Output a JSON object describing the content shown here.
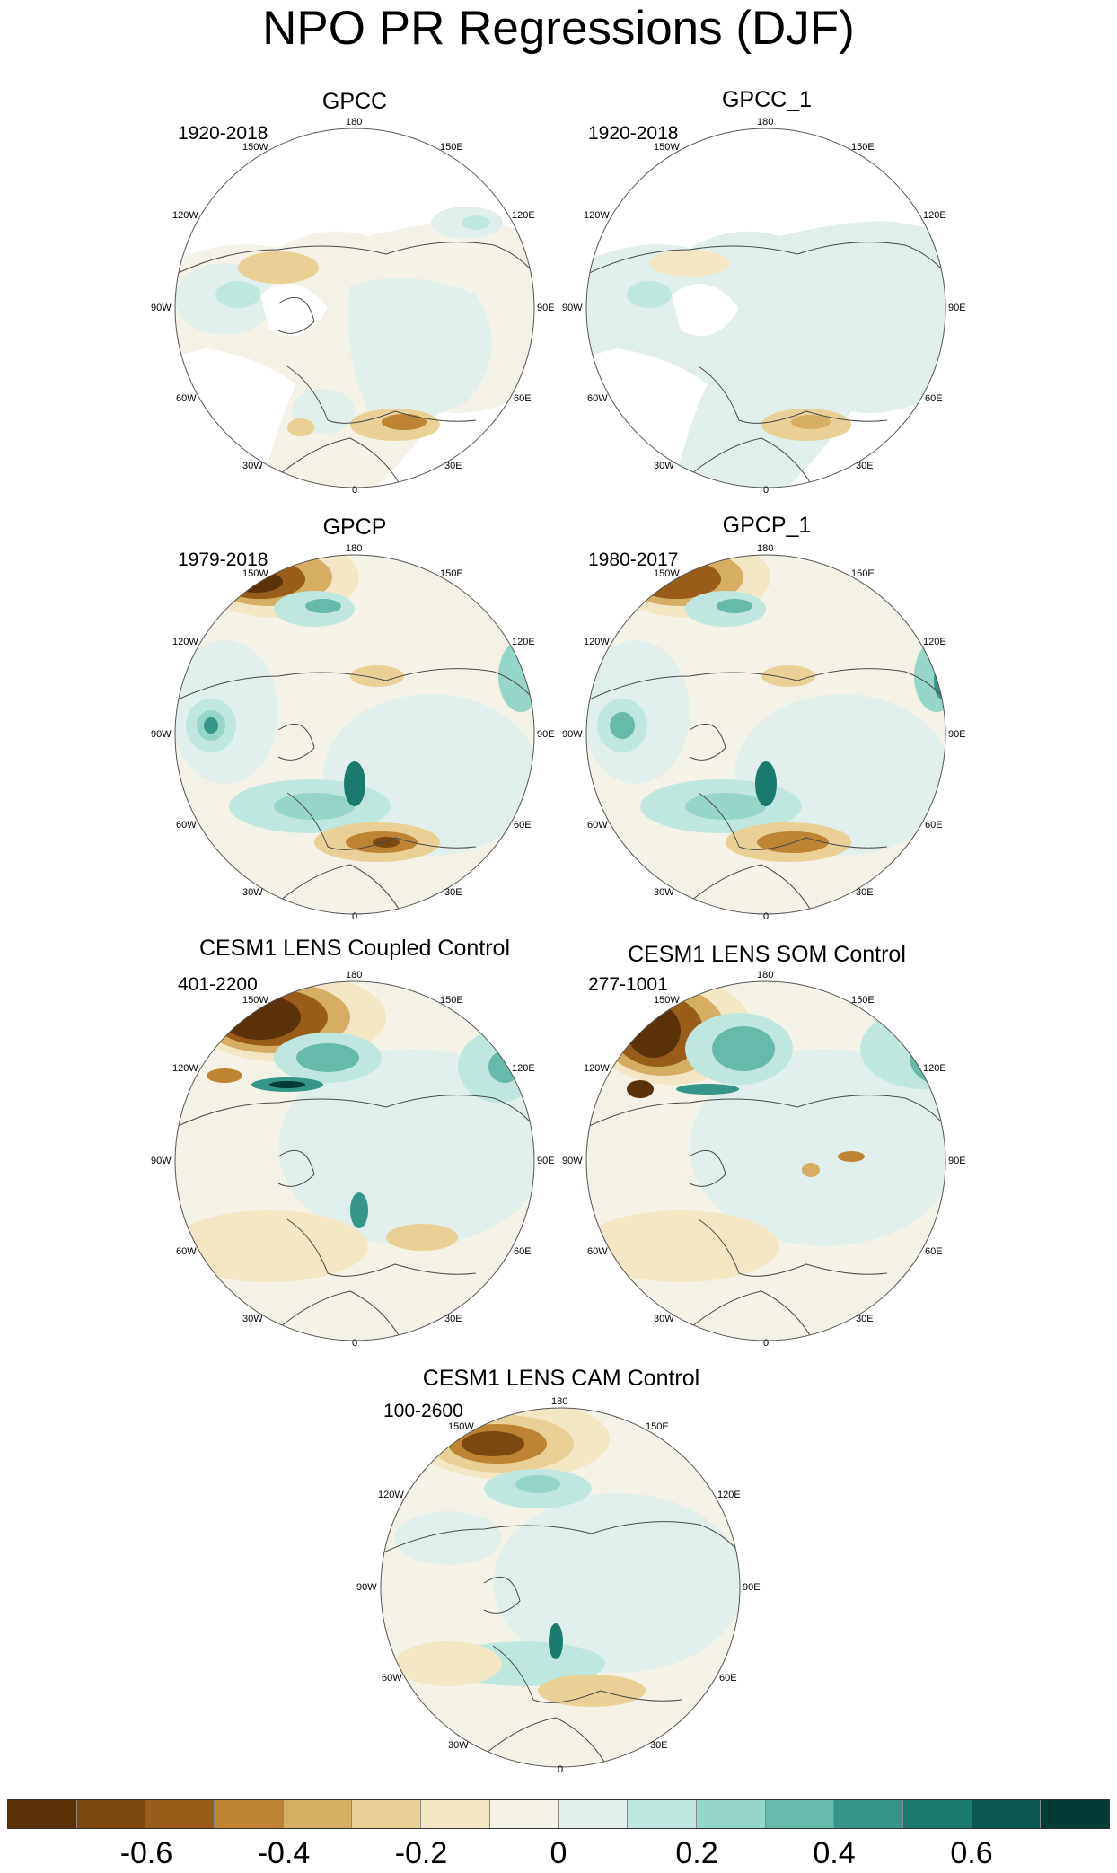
{
  "title": "NPO PR Regressions (DJF)",
  "longitude_labels": {
    "n180": "180",
    "n150e": "150E",
    "n120e": "120E",
    "n90e": "90E",
    "n60e": "60E",
    "n30e": "30E",
    "n0": "0",
    "n30w": "30W",
    "n60w": "60W",
    "n90w": "90W",
    "n120w": "120W",
    "n150w": "150W"
  },
  "panels": [
    {
      "title": "GPCC",
      "period": "1920-2018"
    },
    {
      "title": "GPCC_1",
      "period": "1920-2018"
    },
    {
      "title": "GPCP",
      "period": "1979-2018"
    },
    {
      "title": "GPCP_1",
      "period": "1980-2017"
    },
    {
      "title": "CESM1 LENS Coupled Control",
      "period": "401-2200"
    },
    {
      "title": "CESM1 LENS SOM Control",
      "period": "277-1001"
    },
    {
      "title": "CESM1 LENS CAM Control",
      "period": "100-2600"
    }
  ],
  "colorbar": {
    "colors": [
      "#5b3208",
      "#7d4710",
      "#9a5d19",
      "#be8433",
      "#d6ae63",
      "#e9d196",
      "#f2e6c5",
      "#f4f1e6",
      "#e1efec",
      "#c0e7df",
      "#95d6c8",
      "#65baa9",
      "#359586",
      "#1a7a6d",
      "#08584f",
      "#003c33"
    ],
    "labels": [
      "-0.6",
      "-0.4",
      "-0.2",
      "0",
      "0.2",
      "0.4",
      "0.6"
    ]
  }
}
